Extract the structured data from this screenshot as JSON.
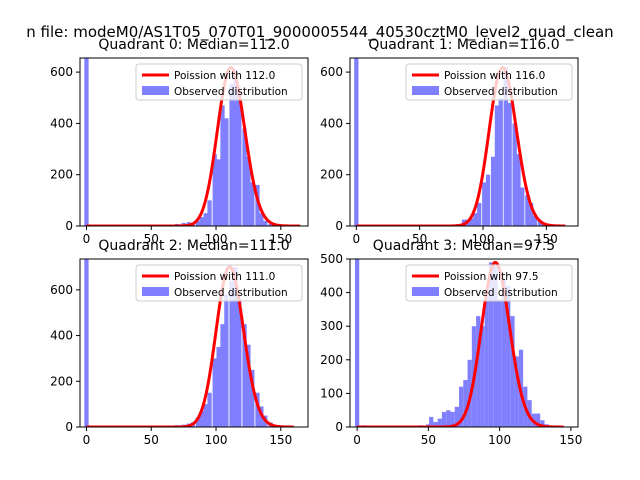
{
  "figure": {
    "title": "n file: modeM0/AS1T05_070T01_9000005544_40530cztM0_level2_quad_clean"
  },
  "colors": {
    "bars": "#8080ff",
    "fit_line": "#ff0000",
    "legend_edge": "#cccccc"
  },
  "chart_data": [
    {
      "type": "bar",
      "title": "Quadrant 0: Median=112.0",
      "xlabel": "",
      "ylabel": "",
      "xlim": [
        -5,
        171
      ],
      "ylim": [
        0,
        655
      ],
      "xticks": [
        0,
        50,
        100,
        150
      ],
      "yticks": [
        0,
        200,
        400,
        600
      ],
      "bin_width": 3.3,
      "legend": {
        "position": "top-right",
        "entries": [
          "Poission with 112.0",
          "Observed distribution"
        ]
      },
      "series": [
        {
          "name": "Observed distribution",
          "kind": "histogram",
          "bins": [
            [
              0,
              655
            ],
            [
              60,
              3
            ],
            [
              66,
              5
            ],
            [
              70,
              8
            ],
            [
              75,
              12
            ],
            [
              79,
              15
            ],
            [
              82,
              12
            ],
            [
              86,
              20
            ],
            [
              89,
              35
            ],
            [
              92,
              50
            ],
            [
              95,
              100
            ],
            [
              99,
              280
            ],
            [
              102,
              260
            ],
            [
              105,
              470
            ],
            [
              108,
              420
            ],
            [
              112,
              555
            ],
            [
              115,
              610
            ],
            [
              118,
              520
            ],
            [
              122,
              380
            ],
            [
              125,
              270
            ],
            [
              128,
              170
            ],
            [
              132,
              160
            ],
            [
              135,
              50
            ],
            [
              138,
              20
            ],
            [
              142,
              8
            ],
            [
              145,
              5
            ],
            [
              149,
              3
            ],
            [
              152,
              2
            ]
          ]
        },
        {
          "name": "Poission with 112.0",
          "kind": "poisson",
          "mean": 112.0,
          "scale": 617,
          "range": [
            0,
            165
          ]
        }
      ]
    },
    {
      "type": "bar",
      "title": "Quadrant 1: Median=116.0",
      "xlabel": "",
      "ylabel": "",
      "xlim": [
        -5,
        175
      ],
      "ylim": [
        0,
        655
      ],
      "xticks": [
        0,
        50,
        100,
        150
      ],
      "yticks": [
        0,
        200,
        400,
        600
      ],
      "bin_width": 3.4,
      "legend": {
        "position": "top-right",
        "entries": [
          "Poission with 116.0",
          "Observed distribution"
        ]
      },
      "series": [
        {
          "name": "Observed distribution",
          "kind": "histogram",
          "bins": [
            [
              0,
              655
            ],
            [
              65,
              3
            ],
            [
              70,
              5
            ],
            [
              75,
              6
            ],
            [
              80,
              8
            ],
            [
              85,
              25
            ],
            [
              88,
              25
            ],
            [
              91,
              30
            ],
            [
              94,
              50
            ],
            [
              97,
              90
            ],
            [
              101,
              170
            ],
            [
              104,
              200
            ],
            [
              108,
              270
            ],
            [
              111,
              470
            ],
            [
              114,
              500
            ],
            [
              118,
              620
            ],
            [
              121,
              480
            ],
            [
              125,
              400
            ],
            [
              128,
              280
            ],
            [
              131,
              150
            ],
            [
              135,
              120
            ],
            [
              138,
              90
            ],
            [
              141,
              40
            ],
            [
              145,
              20
            ],
            [
              148,
              10
            ],
            [
              152,
              5
            ],
            [
              155,
              2
            ],
            [
              160,
              1
            ]
          ]
        },
        {
          "name": "Poission with 116.0",
          "kind": "poisson",
          "mean": 116.0,
          "scale": 617,
          "range": [
            0,
            165
          ]
        }
      ]
    },
    {
      "type": "bar",
      "title": "Quadrant 2: Median=111.0",
      "xlabel": "",
      "ylabel": "",
      "xlim": [
        -5,
        171
      ],
      "ylim": [
        0,
        735
      ],
      "xticks": [
        0,
        50,
        100,
        150
      ],
      "yticks": [
        0,
        200,
        400,
        600
      ],
      "bin_width": 3.3,
      "legend": {
        "position": "top-right",
        "entries": [
          "Poission with 111.0",
          "Observed distribution"
        ]
      },
      "series": [
        {
          "name": "Observed distribution",
          "kind": "histogram",
          "bins": [
            [
              0,
              735
            ],
            [
              60,
              2
            ],
            [
              66,
              4
            ],
            [
              70,
              8
            ],
            [
              75,
              10
            ],
            [
              79,
              15
            ],
            [
              82,
              20
            ],
            [
              86,
              40
            ],
            [
              89,
              70
            ],
            [
              92,
              100
            ],
            [
              95,
              150
            ],
            [
              99,
              300
            ],
            [
              102,
              350
            ],
            [
              105,
              450
            ],
            [
              108,
              580
            ],
            [
              112,
              640
            ],
            [
              115,
              700
            ],
            [
              118,
              560
            ],
            [
              122,
              450
            ],
            [
              125,
              360
            ],
            [
              128,
              250
            ],
            [
              132,
              150
            ],
            [
              135,
              90
            ],
            [
              138,
              50
            ],
            [
              142,
              20
            ],
            [
              145,
              10
            ],
            [
              149,
              5
            ],
            [
              152,
              2
            ]
          ]
        },
        {
          "name": "Poission with 111.0",
          "kind": "poisson",
          "mean": 111.0,
          "scale": 700,
          "range": [
            0,
            160
          ]
        }
      ]
    },
    {
      "type": "bar",
      "title": "Quadrant 3: Median=97.5",
      "xlabel": "",
      "ylabel": "",
      "xlim": [
        -5,
        155
      ],
      "ylim": [
        0,
        500
      ],
      "xticks": [
        0,
        50,
        100,
        150
      ],
      "yticks": [
        0,
        100,
        200,
        300,
        400,
        500
      ],
      "bin_width": 3.0,
      "legend": {
        "position": "top-right",
        "entries": [
          "Poission with 97.5",
          "Observed distribution"
        ]
      },
      "series": [
        {
          "name": "Observed distribution",
          "kind": "histogram",
          "bins": [
            [
              0,
              500
            ],
            [
              5,
              5
            ],
            [
              20,
              3
            ],
            [
              40,
              3
            ],
            [
              45,
              5
            ],
            [
              50,
              8
            ],
            [
              52,
              30
            ],
            [
              55,
              15
            ],
            [
              58,
              25
            ],
            [
              61,
              45
            ],
            [
              64,
              50
            ],
            [
              67,
              45
            ],
            [
              70,
              60
            ],
            [
              73,
              120
            ],
            [
              76,
              140
            ],
            [
              79,
              200
            ],
            [
              82,
              300
            ],
            [
              85,
              330
            ],
            [
              88,
              300
            ],
            [
              91,
              390
            ],
            [
              94,
              490
            ],
            [
              97,
              480
            ],
            [
              100,
              380
            ],
            [
              103,
              440
            ],
            [
              106,
              420
            ],
            [
              109,
              330
            ],
            [
              112,
              210
            ],
            [
              115,
              230
            ],
            [
              118,
              120
            ],
            [
              121,
              80
            ],
            [
              124,
              40
            ],
            [
              127,
              40
            ],
            [
              130,
              20
            ],
            [
              133,
              8
            ],
            [
              136,
              3
            ]
          ]
        },
        {
          "name": "Poission with 97.5",
          "kind": "poisson",
          "mean": 97.5,
          "scale": 490,
          "range": [
            0,
            145
          ]
        }
      ]
    }
  ]
}
